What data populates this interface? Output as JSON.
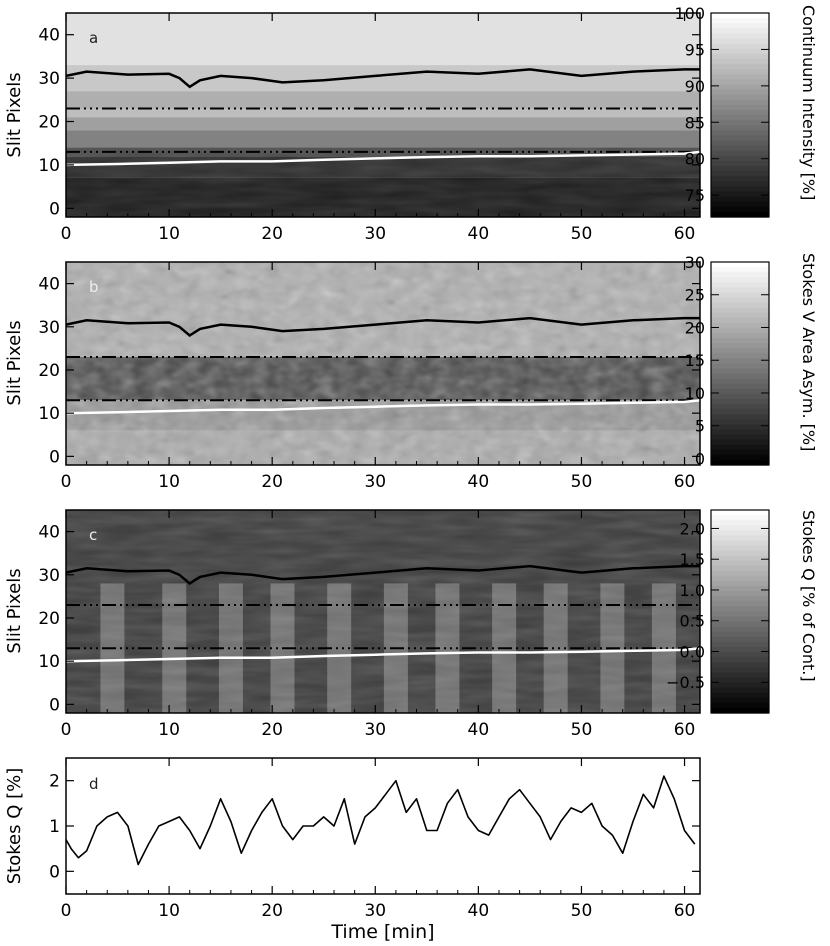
{
  "chart_data": [
    {
      "type": "heatmap",
      "panel_letter": "a",
      "ylabel": "Slit Pixels",
      "xlim": [
        0,
        61.5
      ],
      "ylim": [
        -2,
        45
      ],
      "xticks": [
        "0",
        "10",
        "20",
        "30",
        "40",
        "50",
        "60"
      ],
      "yticks": [
        "0",
        "10",
        "20",
        "30",
        "40"
      ],
      "colorbar": {
        "label": "Continuum Intensity [%]",
        "range": [
          72,
          100
        ],
        "ticks": [
          "75",
          "80",
          "85",
          "90",
          "95",
          "100"
        ]
      },
      "dash_lines_y": [
        23,
        13
      ],
      "black_line": {
        "x": [
          0,
          2,
          6,
          10,
          11,
          12,
          13,
          15,
          18,
          21,
          25,
          30,
          35,
          40,
          45,
          50,
          55,
          60,
          61.5
        ],
        "y": [
          30.5,
          31.5,
          30.8,
          31,
          30,
          28,
          29.5,
          30.5,
          30,
          29,
          29.5,
          30.5,
          31.5,
          31,
          32,
          30.5,
          31.5,
          32,
          32
        ]
      },
      "white_line": {
        "x": [
          0,
          5,
          10,
          15,
          20,
          25,
          30,
          35,
          40,
          45,
          50,
          55,
          60,
          61.5
        ],
        "y": [
          10,
          10.2,
          10.5,
          10.8,
          10.8,
          11.2,
          11.5,
          11.8,
          12,
          12,
          12.2,
          12.4,
          12.6,
          13
        ]
      }
    },
    {
      "type": "heatmap",
      "panel_letter": "b",
      "ylabel": "Slit Pixels",
      "xlim": [
        0,
        61.5
      ],
      "ylim": [
        -2,
        45
      ],
      "xticks": [
        "0",
        "10",
        "20",
        "30",
        "40",
        "50",
        "60"
      ],
      "yticks": [
        "0",
        "10",
        "20",
        "30",
        "40"
      ],
      "colorbar": {
        "label": "Stokes V Area Asym. [%]",
        "range": [
          -1,
          30
        ],
        "ticks": [
          "0",
          "5",
          "10",
          "15",
          "20",
          "25",
          "30"
        ]
      },
      "dash_lines_y": [
        23,
        13
      ],
      "black_line": {
        "x": [
          0,
          2,
          6,
          10,
          11,
          12,
          13,
          15,
          18,
          21,
          25,
          30,
          35,
          40,
          45,
          50,
          55,
          60,
          61.5
        ],
        "y": [
          30.5,
          31.5,
          30.8,
          31,
          30,
          28,
          29.5,
          30.5,
          30,
          29,
          29.5,
          30.5,
          31.5,
          31,
          32,
          30.5,
          31.5,
          32,
          32
        ]
      },
      "white_line": {
        "x": [
          0,
          5,
          10,
          15,
          20,
          25,
          30,
          35,
          40,
          45,
          50,
          55,
          60,
          61.5
        ],
        "y": [
          10,
          10.2,
          10.5,
          10.8,
          10.8,
          11.2,
          11.5,
          11.8,
          12,
          12,
          12.2,
          12.4,
          12.6,
          13
        ]
      }
    },
    {
      "type": "heatmap",
      "panel_letter": "c",
      "ylabel": "Slit Pixels",
      "xlim": [
        0,
        61.5
      ],
      "ylim": [
        -2,
        45
      ],
      "xticks": [
        "0",
        "10",
        "20",
        "30",
        "40",
        "50",
        "60"
      ],
      "yticks": [
        "0",
        "10",
        "20",
        "30",
        "40"
      ],
      "colorbar": {
        "label": "Stokes Q [% of Cont.]",
        "range": [
          -1.0,
          2.3
        ],
        "ticks": [
          "−0.5",
          "0.0",
          "0.5",
          "1.0",
          "1.5",
          "2.0"
        ]
      },
      "dash_lines_y": [
        23,
        13
      ],
      "black_line": {
        "x": [
          0,
          2,
          6,
          10,
          11,
          12,
          13,
          15,
          18,
          21,
          25,
          30,
          35,
          40,
          45,
          50,
          55,
          60,
          61.5
        ],
        "y": [
          30.5,
          31.5,
          30.8,
          31,
          30,
          28,
          29.5,
          30.5,
          30,
          29,
          29.5,
          30.5,
          31.5,
          31,
          32,
          30.5,
          31.5,
          32,
          32
        ]
      },
      "white_line": {
        "x": [
          0,
          5,
          10,
          15,
          20,
          25,
          30,
          35,
          40,
          45,
          50,
          55,
          60,
          61.5
        ],
        "y": [
          10,
          10.2,
          10.5,
          10.8,
          10.8,
          11.2,
          11.5,
          11.8,
          12,
          12,
          12.2,
          12.4,
          12.6,
          13
        ]
      }
    },
    {
      "type": "line",
      "panel_letter": "d",
      "ylabel": "Stokes Q [%]",
      "xlabel": "Time [min]",
      "xlim": [
        0,
        61.5
      ],
      "ylim": [
        -0.5,
        2.5
      ],
      "xticks": [
        "0",
        "10",
        "20",
        "30",
        "40",
        "50",
        "60"
      ],
      "yticks": [
        "0",
        "1",
        "2"
      ],
      "series": [
        {
          "x": [
            0,
            0.5,
            1.2,
            2,
            3,
            4,
            5,
            6,
            7,
            8,
            9,
            10,
            11,
            12,
            13,
            14,
            15,
            16,
            17,
            18,
            19,
            20,
            21,
            22,
            23,
            24,
            25,
            26,
            27,
            28,
            29,
            30,
            31,
            32,
            33,
            34,
            35,
            36,
            37,
            38,
            39,
            40,
            41,
            42,
            43,
            44,
            45,
            46,
            47,
            48,
            49,
            50,
            51,
            52,
            53,
            54,
            55,
            56,
            57,
            58,
            59,
            60,
            61
          ],
          "y": [
            0.7,
            0.5,
            0.3,
            0.45,
            1.0,
            1.2,
            1.3,
            1.0,
            0.15,
            0.6,
            1.0,
            1.1,
            1.2,
            0.9,
            0.5,
            1.0,
            1.6,
            1.1,
            0.4,
            0.9,
            1.3,
            1.6,
            1.0,
            0.7,
            1.0,
            1.0,
            1.2,
            1.0,
            1.6,
            0.6,
            1.2,
            1.4,
            1.7,
            2.0,
            1.3,
            1.6,
            0.9,
            0.9,
            1.5,
            1.8,
            1.2,
            0.9,
            0.8,
            1.2,
            1.6,
            1.8,
            1.5,
            1.2,
            0.7,
            1.1,
            1.4,
            1.3,
            1.5,
            1.0,
            0.8,
            0.4,
            1.1,
            1.7,
            1.4,
            2.1,
            1.6,
            0.9,
            0.6
          ]
        }
      ]
    }
  ]
}
